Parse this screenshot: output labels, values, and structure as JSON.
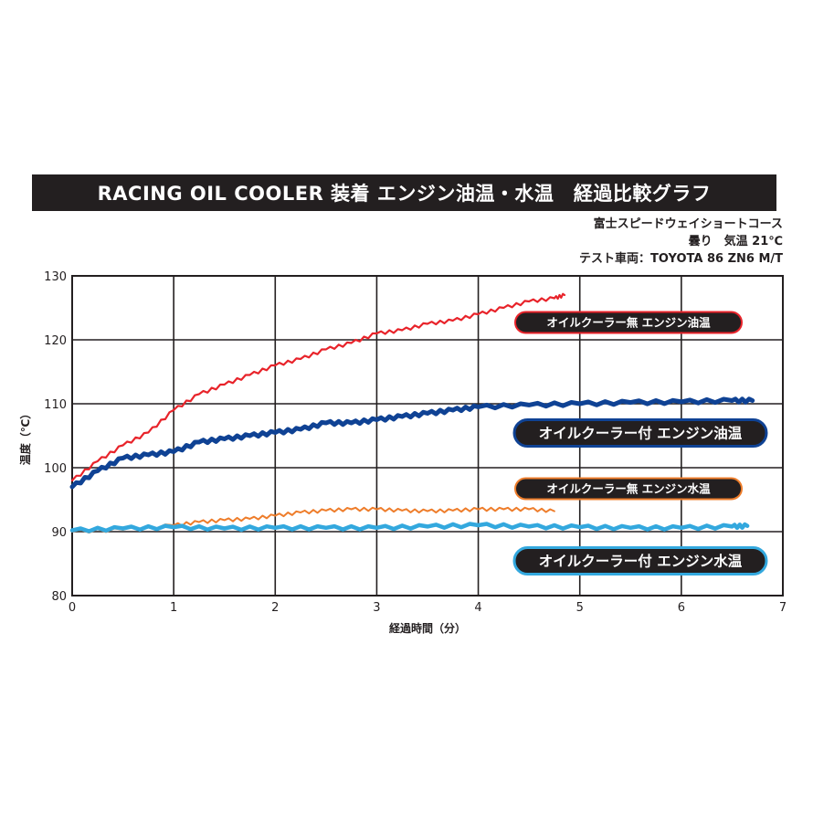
{
  "title": "RACING OIL COOLER 装着 エンジン油温・水温　経過比較グラフ",
  "info": {
    "course": "富士スピードウェイショートコース",
    "weather": "曇り　気温 21℃",
    "vehicle": "テスト車両：TOYOTA 86 ZN6 M/T"
  },
  "chart_data": {
    "type": "line",
    "xlabel": "経過時間（分）",
    "ylabel": "温度（℃）",
    "xlim": [
      0,
      7
    ],
    "ylim": [
      80,
      130
    ],
    "xticks": [
      "0",
      "1",
      "2",
      "3",
      "4",
      "5",
      "6",
      "7"
    ],
    "yticks": [
      "80",
      "90",
      "100",
      "110",
      "120",
      "130"
    ],
    "grid": true,
    "series": [
      {
        "name": "オイルクーラー無 エンジン油温",
        "color": "#e8232a",
        "x": [
          0,
          0.25,
          0.5,
          0.75,
          1.0,
          1.25,
          1.5,
          1.75,
          2.0,
          2.25,
          2.5,
          2.75,
          3.0,
          3.25,
          3.5,
          3.75,
          4.0,
          4.25,
          4.5,
          4.75,
          4.85
        ],
        "values": [
          98,
          101,
          103.5,
          105.5,
          109,
          111.5,
          113,
          114.5,
          116,
          117,
          118.5,
          119.5,
          121,
          121.5,
          122.5,
          123,
          124,
          125,
          126,
          126.5,
          127
        ]
      },
      {
        "name": "オイルクーラー付 エンジン油温",
        "color": "#0f4294",
        "x": [
          0,
          0.25,
          0.5,
          0.75,
          1.0,
          1.25,
          1.5,
          1.75,
          2.0,
          2.25,
          2.5,
          2.75,
          3.0,
          3.25,
          3.5,
          3.75,
          4.0,
          4.5,
          5.0,
          5.5,
          6.0,
          6.5,
          6.7
        ],
        "values": [
          97,
          99.5,
          101.5,
          102,
          102.5,
          104,
          104.5,
          105,
          105.5,
          106,
          107,
          107,
          107.5,
          108,
          108.5,
          109,
          109.5,
          109.8,
          110,
          110.2,
          110.3,
          110.5,
          110.5
        ]
      },
      {
        "name": "オイルクーラー無 エンジン水温",
        "color": "#ee7d2b",
        "x": [
          0,
          0.5,
          1.0,
          1.25,
          1.5,
          1.75,
          2.0,
          2.25,
          2.5,
          2.75,
          3.0,
          3.25,
          3.5,
          3.75,
          4.0,
          4.25,
          4.5,
          4.75
        ],
        "values": [
          90,
          90.3,
          91,
          91.5,
          91.8,
          92,
          92.5,
          93,
          93.3,
          93.5,
          93.5,
          93.3,
          93.2,
          93.3,
          93.5,
          93.5,
          93.5,
          93.2
        ]
      },
      {
        "name": "オイルクーラー付 エンジン水温",
        "color": "#33a8de",
        "x": [
          0,
          0.5,
          1.0,
          1.5,
          2.0,
          2.5,
          3.0,
          3.5,
          4.0,
          4.5,
          5.0,
          5.5,
          6.0,
          6.5,
          6.65
        ],
        "values": [
          90.2,
          90.5,
          90.7,
          90.5,
          90.6,
          90.6,
          90.6,
          90.8,
          91,
          90.8,
          90.7,
          90.6,
          90.6,
          90.8,
          90.9
        ]
      }
    ]
  }
}
